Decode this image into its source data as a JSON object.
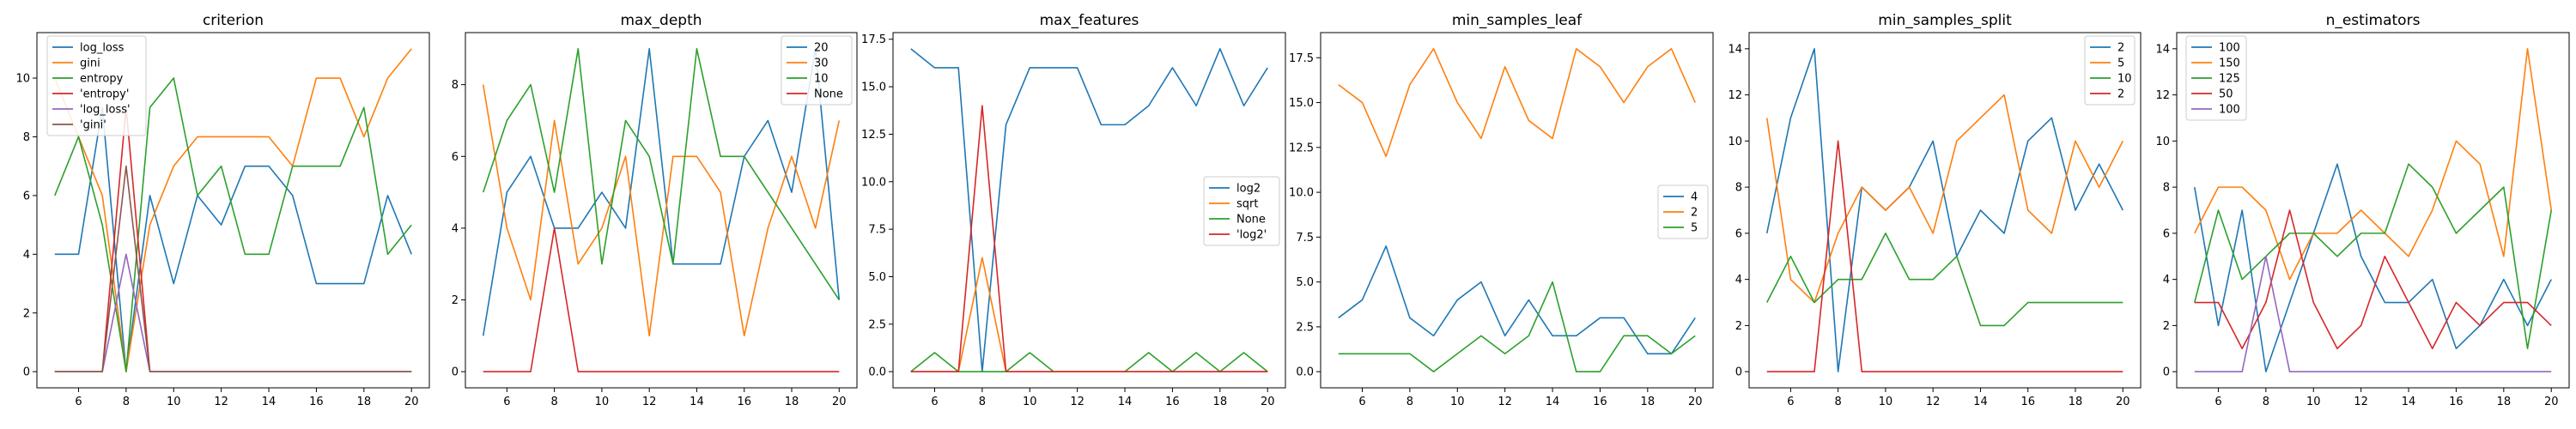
{
  "chart_data": [
    {
      "type": "line",
      "title": "criterion",
      "xlabel": "",
      "ylabel": "",
      "xlim": [
        4.25,
        20.75
      ],
      "ylim": [
        -0.55,
        11.55
      ],
      "xticks": [
        6,
        8,
        10,
        12,
        14,
        16,
        18,
        20
      ],
      "yticks": [
        0,
        2,
        4,
        6,
        8,
        10
      ],
      "legend_loc": "upper-left-center",
      "x": [
        5,
        6,
        7,
        8,
        9,
        10,
        11,
        12,
        13,
        14,
        15,
        16,
        17,
        18,
        19,
        20
      ],
      "series": [
        {
          "name": "log_loss",
          "color": "#1f77b4",
          "values": [
            4,
            4,
            9,
            0,
            6,
            3,
            6,
            5,
            7,
            7,
            6,
            3,
            3,
            3,
            6,
            4
          ]
        },
        {
          "name": "gini",
          "color": "#ff7f0e",
          "values": [
            10,
            8,
            6,
            0,
            5,
            7,
            8,
            8,
            8,
            8,
            7,
            10,
            10,
            8,
            10,
            11
          ]
        },
        {
          "name": "entropy",
          "color": "#2ca02c",
          "values": [
            6,
            8,
            5,
            0,
            9,
            10,
            6,
            7,
            4,
            4,
            7,
            7,
            7,
            9,
            4,
            5
          ]
        },
        {
          "name": "'entropy'",
          "color": "#d62728",
          "values": [
            0,
            0,
            0,
            9,
            0,
            0,
            0,
            0,
            0,
            0,
            0,
            0,
            0,
            0,
            0,
            0
          ]
        },
        {
          "name": "'log_loss'",
          "color": "#9467bd",
          "values": [
            0,
            0,
            0,
            4,
            0,
            0,
            0,
            0,
            0,
            0,
            0,
            0,
            0,
            0,
            0,
            0
          ]
        },
        {
          "name": "'gini'",
          "color": "#8c564b",
          "values": [
            0,
            0,
            0,
            7,
            0,
            0,
            0,
            0,
            0,
            0,
            0,
            0,
            0,
            0,
            0,
            0
          ]
        }
      ]
    },
    {
      "type": "line",
      "title": "max_depth",
      "xlabel": "",
      "ylabel": "",
      "xlim": [
        4.25,
        20.75
      ],
      "ylim": [
        -0.45,
        9.45
      ],
      "xticks": [
        6,
        8,
        10,
        12,
        14,
        16,
        18,
        20
      ],
      "yticks": [
        0,
        2,
        4,
        6,
        8
      ],
      "legend_loc": "upper-right",
      "x": [
        5,
        6,
        7,
        8,
        9,
        10,
        11,
        12,
        13,
        14,
        15,
        16,
        17,
        18,
        19,
        20
      ],
      "series": [
        {
          "name": "20",
          "color": "#1f77b4",
          "values": [
            1,
            5,
            6,
            4,
            4,
            5,
            4,
            9,
            3,
            3,
            3,
            6,
            7,
            5,
            9,
            2
          ]
        },
        {
          "name": "30",
          "color": "#ff7f0e",
          "values": [
            8,
            4,
            2,
            7,
            3,
            4,
            6,
            1,
            6,
            6,
            5,
            1,
            4,
            6,
            4,
            7
          ]
        },
        {
          "name": "10",
          "color": "#2ca02c",
          "values": [
            5,
            7,
            8,
            5,
            9,
            3,
            7,
            6,
            3,
            9,
            6,
            6,
            5,
            4,
            3,
            2
          ]
        },
        {
          "name": "None",
          "color": "#d62728",
          "values": [
            0,
            0,
            0,
            4,
            0,
            0,
            0,
            0,
            0,
            0,
            0,
            0,
            0,
            0,
            0,
            0
          ]
        }
      ]
    },
    {
      "type": "line",
      "title": "max_features",
      "xlabel": "",
      "ylabel": "",
      "xlim": [
        4.25,
        20.75
      ],
      "ylim": [
        -0.85,
        17.85
      ],
      "xticks": [
        6,
        8,
        10,
        12,
        14,
        16,
        18,
        20
      ],
      "yticks": [
        0.0,
        2.5,
        5.0,
        7.5,
        10.0,
        12.5,
        15.0,
        17.5
      ],
      "ytick_labels": [
        "0.0",
        "2.5",
        "5.0",
        "7.5",
        "10.0",
        "12.5",
        "15.0",
        "17.5"
      ],
      "legend_loc": "center-right",
      "x": [
        5,
        6,
        7,
        8,
        9,
        10,
        11,
        12,
        13,
        14,
        15,
        16,
        17,
        18,
        19,
        20
      ],
      "series": [
        {
          "name": "log2",
          "color": "#1f77b4",
          "values": [
            17,
            16,
            16,
            0,
            13,
            16,
            16,
            16,
            13,
            13,
            14,
            16,
            14,
            17,
            14,
            16
          ]
        },
        {
          "name": "sqrt",
          "color": "#ff7f0e",
          "values": [
            0,
            0,
            0,
            6,
            0,
            0,
            0,
            0,
            0,
            0,
            0,
            0,
            0,
            0,
            0,
            0
          ]
        },
        {
          "name": "None",
          "color": "#2ca02c",
          "values": [
            0,
            1,
            0,
            0,
            0,
            1,
            0,
            0,
            0,
            0,
            1,
            0,
            1,
            0,
            1,
            0
          ]
        },
        {
          "name": "'log2'",
          "color": "#d62728",
          "values": [
            0,
            0,
            0,
            14,
            0,
            0,
            0,
            0,
            0,
            0,
            0,
            0,
            0,
            0,
            0,
            0
          ]
        }
      ]
    },
    {
      "type": "line",
      "title": "min_samples_leaf",
      "xlabel": "",
      "ylabel": "",
      "xlim": [
        4.25,
        20.75
      ],
      "ylim": [
        -0.9,
        18.9
      ],
      "xticks": [
        6,
        8,
        10,
        12,
        14,
        16,
        18,
        20
      ],
      "yticks": [
        0.0,
        2.5,
        5.0,
        7.5,
        10.0,
        12.5,
        15.0,
        17.5
      ],
      "ytick_labels": [
        "0.0",
        "2.5",
        "5.0",
        "7.5",
        "10.0",
        "12.5",
        "15.0",
        "17.5"
      ],
      "legend_loc": "center-right",
      "x": [
        5,
        6,
        7,
        8,
        9,
        10,
        11,
        12,
        13,
        14,
        15,
        16,
        17,
        18,
        19,
        20
      ],
      "series": [
        {
          "name": "4",
          "color": "#1f77b4",
          "values": [
            3,
            4,
            7,
            3,
            2,
            4,
            5,
            2,
            4,
            2,
            2,
            3,
            3,
            1,
            1,
            3
          ]
        },
        {
          "name": "2",
          "color": "#ff7f0e",
          "values": [
            16,
            15,
            12,
            16,
            18,
            15,
            13,
            17,
            14,
            13,
            18,
            17,
            15,
            17,
            18,
            15
          ]
        },
        {
          "name": "5",
          "color": "#2ca02c",
          "values": [
            1,
            1,
            1,
            1,
            0,
            1,
            2,
            1,
            2,
            5,
            0,
            0,
            2,
            2,
            1,
            2
          ]
        }
      ]
    },
    {
      "type": "line",
      "title": "min_samples_split",
      "xlabel": "",
      "ylabel": "",
      "xlim": [
        4.25,
        20.75
      ],
      "ylim": [
        -0.7,
        14.7
      ],
      "xticks": [
        6,
        8,
        10,
        12,
        14,
        16,
        18,
        20
      ],
      "yticks": [
        0,
        2,
        4,
        6,
        8,
        10,
        12,
        14
      ],
      "legend_loc": "upper-right",
      "x": [
        5,
        6,
        7,
        8,
        9,
        10,
        11,
        12,
        13,
        14,
        15,
        16,
        17,
        18,
        19,
        20
      ],
      "series": [
        {
          "name": "2",
          "color": "#1f77b4",
          "values": [
            6,
            11,
            14,
            0,
            8,
            7,
            8,
            10,
            5,
            7,
            6,
            10,
            11,
            7,
            9,
            7
          ]
        },
        {
          "name": "5",
          "color": "#ff7f0e",
          "values": [
            11,
            4,
            3,
            6,
            8,
            7,
            8,
            6,
            10,
            11,
            12,
            7,
            6,
            10,
            8,
            10
          ]
        },
        {
          "name": "10",
          "color": "#2ca02c",
          "values": [
            3,
            5,
            3,
            4,
            4,
            6,
            4,
            4,
            5,
            2,
            2,
            3,
            3,
            3,
            3,
            3
          ]
        },
        {
          "name": "2",
          "color": "#d62728",
          "values": [
            0,
            0,
            0,
            10,
            0,
            0,
            0,
            0,
            0,
            0,
            0,
            0,
            0,
            0,
            0,
            0
          ]
        }
      ]
    },
    {
      "type": "line",
      "title": "n_estimators",
      "xlabel": "",
      "ylabel": "",
      "xlim": [
        4.25,
        20.75
      ],
      "ylim": [
        -0.7,
        14.7
      ],
      "xticks": [
        6,
        8,
        10,
        12,
        14,
        16,
        18,
        20
      ],
      "yticks": [
        0,
        2,
        4,
        6,
        8,
        10,
        12,
        14
      ],
      "legend_loc": "upper-left",
      "x": [
        5,
        6,
        7,
        8,
        9,
        10,
        11,
        12,
        13,
        14,
        15,
        16,
        17,
        18,
        19,
        20
      ],
      "series": [
        {
          "name": "100",
          "color": "#1f77b4",
          "values": [
            8,
            2,
            7,
            0,
            3,
            6,
            9,
            5,
            3,
            3,
            4,
            1,
            2,
            4,
            2,
            4
          ]
        },
        {
          "name": "150",
          "color": "#ff7f0e",
          "values": [
            6,
            8,
            8,
            7,
            4,
            6,
            6,
            7,
            6,
            5,
            7,
            10,
            9,
            5,
            14,
            7
          ]
        },
        {
          "name": "125",
          "color": "#2ca02c",
          "values": [
            3,
            7,
            4,
            5,
            6,
            6,
            5,
            6,
            6,
            9,
            8,
            6,
            7,
            8,
            1,
            7
          ]
        },
        {
          "name": "50",
          "color": "#d62728",
          "values": [
            3,
            3,
            1,
            3,
            7,
            3,
            1,
            2,
            5,
            3,
            1,
            3,
            2,
            3,
            3,
            2
          ]
        },
        {
          "name": "100",
          "color": "#9467bd",
          "values": [
            0,
            0,
            0,
            5,
            0,
            0,
            0,
            0,
            0,
            0,
            0,
            0,
            0,
            0,
            0,
            0
          ]
        }
      ]
    }
  ]
}
